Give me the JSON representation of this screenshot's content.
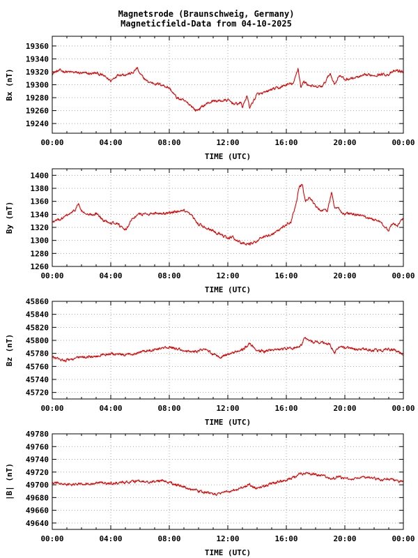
{
  "title": {
    "line1": "Magnetsrode (Braunschweig, Germany)",
    "line2": "Magneticfield-Data from 04-10-2025"
  },
  "colors": {
    "series": "#e00000",
    "grid": "#a8a8a8",
    "frame": "#000000"
  },
  "chart_data": [
    {
      "type": "line",
      "id": "bx",
      "ylabel": "Bx (nT)",
      "xlabel": "TIME (UTC)",
      "xlim": [
        0,
        24
      ],
      "x_tick_labels": [
        "00:00",
        "04:00",
        "08:00",
        "12:00",
        "16:00",
        "20:00",
        "00:00"
      ],
      "ylim": [
        19225,
        19375
      ],
      "y_ticks": [
        19240,
        19260,
        19280,
        19300,
        19320,
        19340,
        19360
      ],
      "grid": true,
      "series": [
        {
          "x": [
            0,
            0.5,
            1,
            1.5,
            2,
            2.5,
            3,
            3.5,
            4,
            4.5,
            5,
            5.5,
            5.8,
            6,
            6.5,
            7,
            7.5,
            8,
            8.5,
            9,
            9.5,
            9.8,
            10,
            10.5,
            11,
            11.5,
            12,
            12.5,
            12.9,
            13,
            13.3,
            13.5,
            14,
            14.5,
            15,
            15.5,
            16,
            16.5,
            16.8,
            17,
            17.2,
            17.5,
            18,
            18.5,
            19,
            19.3,
            19.6,
            20,
            20.5,
            21,
            21.5,
            22,
            22.5,
            23,
            23.5,
            24
          ],
          "y": [
            19318,
            19322,
            19320,
            19319,
            19318,
            19317,
            19318,
            19314,
            19306,
            19316,
            19316,
            19318,
            19326,
            19316,
            19305,
            19302,
            19300,
            19295,
            19280,
            19275,
            19268,
            19260,
            19262,
            19270,
            19275,
            19275,
            19276,
            19270,
            19272,
            19265,
            19283,
            19265,
            19285,
            19287,
            19293,
            19295,
            19300,
            19302,
            19326,
            19296,
            19305,
            19300,
            19296,
            19298,
            19318,
            19300,
            19315,
            19308,
            19310,
            19312,
            19315,
            19315,
            19316,
            19316,
            19322,
            19320
          ]
        }
      ]
    },
    {
      "type": "line",
      "id": "by",
      "ylabel": "By (nT)",
      "xlabel": "TIME (UTC)",
      "xlim": [
        0,
        24
      ],
      "x_tick_labels": [
        "00:00",
        "04:00",
        "08:00",
        "12:00",
        "16:00",
        "20:00",
        "00:00"
      ],
      "ylim": [
        1260,
        1410
      ],
      "y_ticks": [
        1260,
        1280,
        1300,
        1320,
        1340,
        1360,
        1380,
        1400
      ],
      "grid": true,
      "series": [
        {
          "x": [
            0,
            0.5,
            1,
            1.5,
            1.8,
            2,
            2.5,
            3,
            3.5,
            4,
            4.5,
            4.8,
            5,
            5.5,
            6,
            7,
            8,
            9,
            9.5,
            10,
            10.5,
            11,
            11.5,
            12,
            12.3,
            12.6,
            13,
            13.5,
            14,
            14.5,
            15,
            15.5,
            16,
            16.3,
            16.6,
            16.9,
            17.1,
            17.3,
            17.6,
            18,
            18.4,
            18.8,
            19.1,
            19.3,
            19.6,
            20,
            20.5,
            21,
            21.5,
            22,
            22.5,
            22.8,
            23,
            23.3,
            23.6,
            24
          ],
          "y": [
            1328,
            1332,
            1338,
            1345,
            1356,
            1345,
            1338,
            1342,
            1330,
            1328,
            1326,
            1318,
            1315,
            1335,
            1340,
            1342,
            1342,
            1345,
            1338,
            1325,
            1320,
            1315,
            1310,
            1302,
            1306,
            1300,
            1296,
            1294,
            1300,
            1305,
            1310,
            1316,
            1325,
            1328,
            1350,
            1382,
            1385,
            1360,
            1366,
            1352,
            1346,
            1345,
            1374,
            1350,
            1348,
            1340,
            1342,
            1338,
            1335,
            1332,
            1328,
            1320,
            1315,
            1328,
            1322,
            1334
          ]
        }
      ]
    },
    {
      "type": "line",
      "id": "bz",
      "ylabel": "Bz (nT)",
      "xlabel": "TIME (UTC)",
      "xlim": [
        0,
        24
      ],
      "x_tick_labels": [
        "00:00",
        "04:00",
        "08:00",
        "12:00",
        "16:00",
        "20:00",
        "00:00"
      ],
      "ylim": [
        45710,
        45860
      ],
      "y_ticks": [
        45720,
        45740,
        45760,
        45780,
        45800,
        45820,
        45840,
        45860
      ],
      "grid": true,
      "series": [
        {
          "x": [
            0,
            0.5,
            1,
            1.5,
            2,
            2.5,
            3,
            3.5,
            4,
            4.5,
            5,
            5.5,
            6,
            6.5,
            7,
            7.5,
            8,
            8.5,
            9,
            9.5,
            10,
            10.5,
            11,
            11.5,
            12,
            12.5,
            13,
            13.5,
            14,
            14.5,
            15,
            15.5,
            16,
            16.5,
            17,
            17.3,
            17.6,
            18,
            18.5,
            19,
            19.3,
            19.6,
            20,
            20.5,
            21,
            21.5,
            22,
            22.5,
            23,
            23.5,
            24
          ],
          "y": [
            45775,
            45770,
            45770,
            45772,
            45774,
            45775,
            45775,
            45778,
            45780,
            45778,
            45777,
            45780,
            45782,
            45785,
            45786,
            45788,
            45789,
            45788,
            45784,
            45782,
            45784,
            45786,
            45778,
            45775,
            45778,
            45782,
            45786,
            45796,
            45784,
            45783,
            45786,
            45786,
            45787,
            45788,
            45792,
            45804,
            45798,
            45798,
            45796,
            45794,
            45780,
            45790,
            45788,
            45787,
            45786,
            45786,
            45785,
            45784,
            45786,
            45784,
            45778
          ]
        }
      ]
    },
    {
      "type": "line",
      "id": "b",
      "ylabel": "|B| (nT)",
      "xlabel": "TIME (UTC)",
      "xlim": [
        0,
        24
      ],
      "x_tick_labels": [
        "00:00",
        "04:00",
        "08:00",
        "12:00",
        "16:00",
        "20:00",
        "00:00"
      ],
      "ylim": [
        49630,
        49780
      ],
      "y_ticks": [
        49640,
        49660,
        49680,
        49700,
        49720,
        49740,
        49760,
        49780
      ],
      "grid": true,
      "series": [
        {
          "x": [
            0,
            0.5,
            1,
            1.5,
            2,
            2.5,
            3,
            3.5,
            4,
            4.5,
            5,
            5.5,
            6,
            6.5,
            7,
            7.5,
            8,
            8.5,
            9,
            9.5,
            10,
            10.5,
            11,
            11.5,
            12,
            12.5,
            13,
            13.5,
            14,
            14.5,
            15,
            15.5,
            16,
            16.5,
            17,
            17.5,
            18,
            18.5,
            19,
            19.5,
            20,
            20.5,
            21,
            21.5,
            22,
            22.5,
            23,
            23.5,
            24
          ],
          "y": [
            49703,
            49702,
            49700,
            49700,
            49702,
            49702,
            49703,
            49703,
            49702,
            49703,
            49704,
            49705,
            49705,
            49704,
            49705,
            49707,
            49704,
            49700,
            49697,
            49693,
            49690,
            49688,
            49685,
            49686,
            49690,
            49692,
            49696,
            49700,
            49695,
            49698,
            49702,
            49705,
            49708,
            49712,
            49718,
            49718,
            49716,
            49714,
            49710,
            49712,
            49710,
            49710,
            49710,
            49711,
            49710,
            49708,
            49710,
            49706,
            49705
          ]
        }
      ]
    }
  ]
}
